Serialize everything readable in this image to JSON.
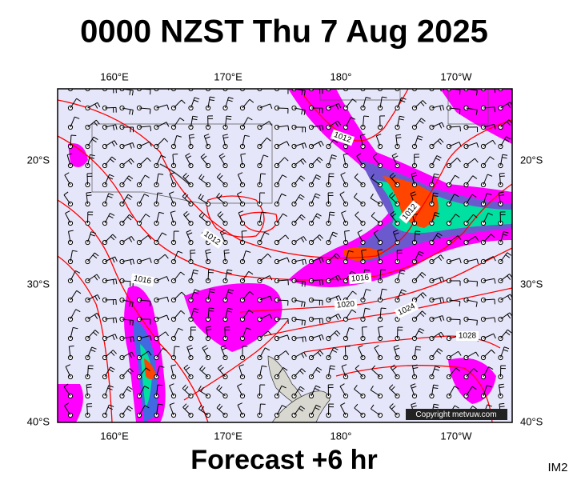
{
  "title": "0000 NZST Thu 7 Aug 2025",
  "longitude_labels": [
    "160°E",
    "170°E",
    "180°",
    "170°W"
  ],
  "latitude_labels": [
    "20°S",
    "30°S",
    "40°S"
  ],
  "isobar_labels": [
    "1012",
    "1012",
    "1012",
    "1016",
    "1016",
    "1020",
    "1024",
    "1028"
  ],
  "copyright": "Copyright metvuw.com",
  "footer": "Forecast +6 hr",
  "image_id": "IM2"
}
